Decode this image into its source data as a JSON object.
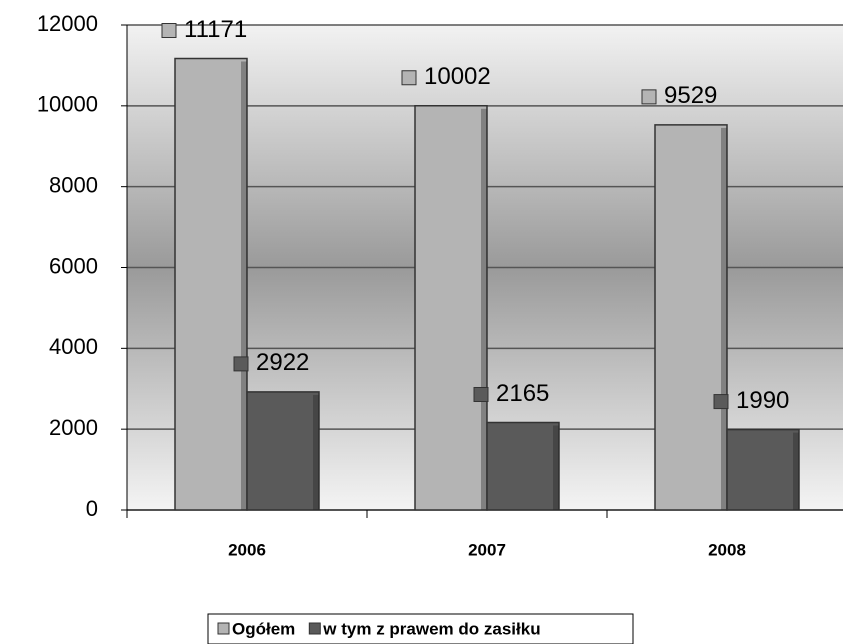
{
  "chart_data": {
    "type": "bar",
    "categories": [
      "2006",
      "2007",
      "2008"
    ],
    "series": [
      {
        "name": "Ogółem",
        "color": "#b4b4b4",
        "values": [
          11171,
          10002,
          9529
        ]
      },
      {
        "name": "w tym z prawem do zasiłku",
        "color": "#5a5a5a",
        "values": [
          2922,
          2165,
          1990
        ]
      }
    ],
    "ylim": [
      0,
      12000
    ],
    "yticks": [
      0,
      2000,
      4000,
      6000,
      8000,
      10000,
      12000
    ],
    "grid": true,
    "legend": "bottom"
  }
}
